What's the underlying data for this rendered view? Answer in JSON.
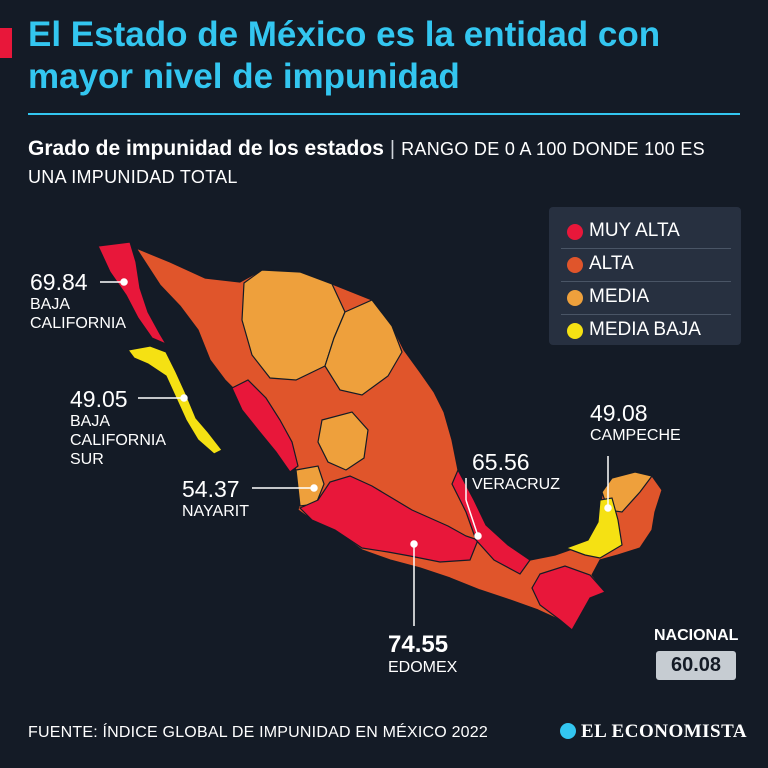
{
  "title": "El Estado de México es la entidad con mayor nivel de impunidad",
  "subtitle": {
    "main": "Grado de impunidad de los estados",
    "separator": "|",
    "note": "RANGO DE 0 A 100 DONDE 100 ES UNA IMPUNIDAD TOTAL"
  },
  "legend": [
    {
      "label": "MUY ALTA",
      "color": "#e8173a"
    },
    {
      "label": "ALTA",
      "color": "#e0552b"
    },
    {
      "label": "MEDIA",
      "color": "#eea03c"
    },
    {
      "label": "MEDIA BAJA",
      "color": "#f5e113"
    }
  ],
  "callouts": {
    "baja_california": {
      "value": "69.84",
      "name": "BAJA CALIFORNIA"
    },
    "bcs": {
      "value": "49.05",
      "name": "BAJA CALIFORNIA SUR"
    },
    "nayarit": {
      "value": "54.37",
      "name": "NAYARIT"
    },
    "veracruz": {
      "value": "65.56",
      "name": "VERACRUZ"
    },
    "campeche": {
      "value": "49.08",
      "name": "CAMPECHE"
    },
    "edomex": {
      "value": "74.55",
      "name": "EDOMEX"
    }
  },
  "national": {
    "label": "NACIONAL",
    "value": "60.08"
  },
  "source": "FUENTE: ÍNDICE GLOBAL DE IMPUNIDAD EN MÉXICO 2022",
  "logo": "EL ECONOMISTA",
  "colors": {
    "accent": "#33c6f0",
    "background": "#141b26",
    "label_box": "#c6ccd2"
  }
}
